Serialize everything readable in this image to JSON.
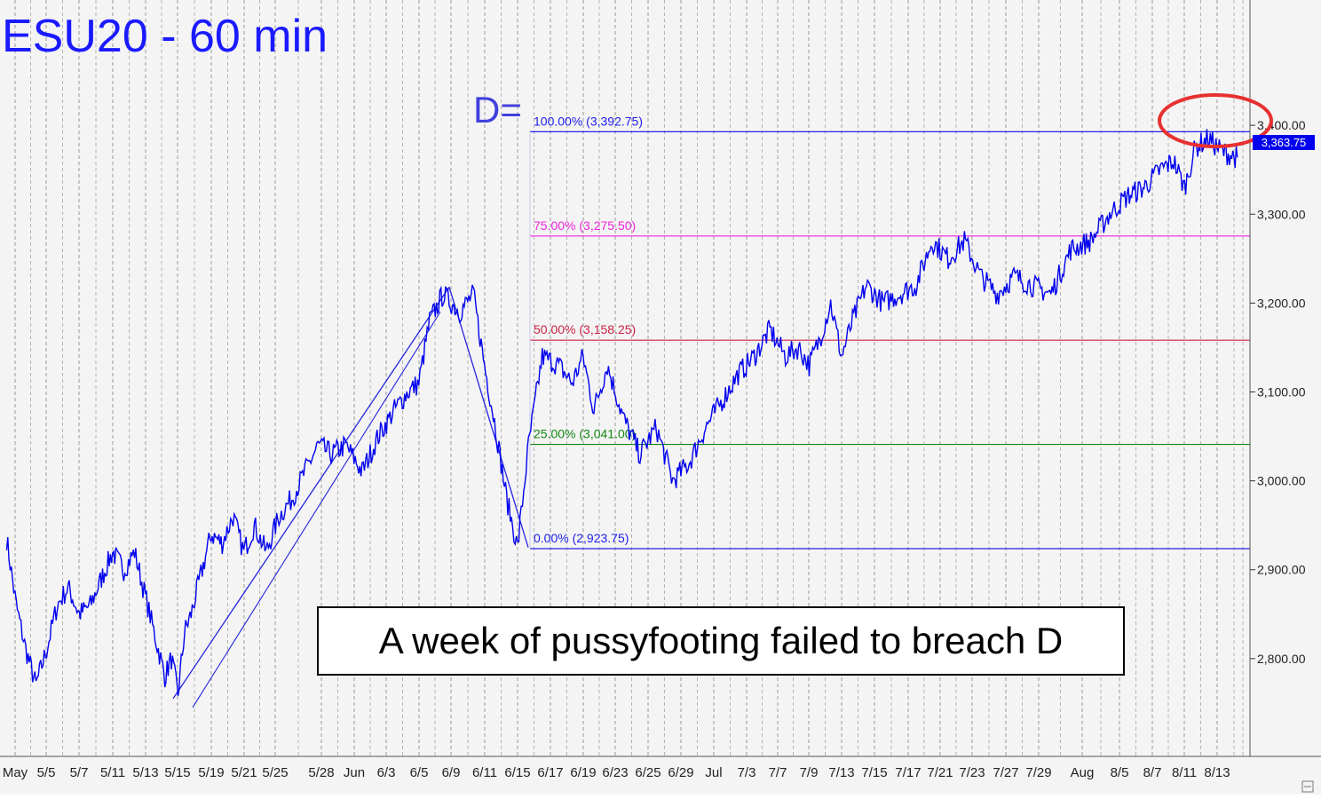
{
  "colors": {
    "background": "#f4f4f4",
    "price": "#0000ee",
    "level_100": "#2020ee",
    "level_75": "#ee22dd",
    "level_50": "#cc2244",
    "level_25": "#118811",
    "level_0": "#2020ee",
    "title": "#1a1aff",
    "highlight_ellipse": "#e83030",
    "current_price_bg": "#0000ee"
  },
  "chart_data": {
    "type": "line",
    "title": "ESU20 - 60 min",
    "timeframe": "60 min",
    "x_tick_labels": [
      "May",
      "5/5",
      "5/7",
      "5/11",
      "5/13",
      "5/15",
      "5/19",
      "5/21",
      "5/25",
      "5/28",
      "Jun",
      "6/3",
      "6/5",
      "6/9",
      "6/11",
      "6/15",
      "6/17",
      "6/19",
      "6/23",
      "6/25",
      "6/29",
      "Jul",
      "7/3",
      "7/7",
      "7/9",
      "7/13",
      "7/15",
      "7/17",
      "7/21",
      "7/23",
      "7/27",
      "7/29",
      "Aug",
      "8/5",
      "8/7",
      "8/11",
      "8/13"
    ],
    "y_tick_labels": [
      "2,800.00",
      "2,900.00",
      "3,000.00",
      "3,100.00",
      "3,200.00",
      "3,300.00",
      "3,400.00"
    ],
    "y_ticks": [
      2800,
      2900,
      3000,
      3100,
      3200,
      3300,
      3400
    ],
    "ylim": [
      2690,
      3515
    ],
    "grid": "vertical dashed",
    "current_price": 3363.75,
    "current_price_label": "3,363.75",
    "d_label": "D=",
    "levels": [
      {
        "key": "level_100",
        "label": "100.00% (3,392.75)",
        "value": 3392.75
      },
      {
        "key": "level_75",
        "label": "75.00% (3,275.50)",
        "value": 3275.5
      },
      {
        "key": "level_50",
        "label": "50.00% (3,158.25)",
        "value": 3158.25
      },
      {
        "key": "level_25",
        "label": "25.00% (3,041.00)",
        "value": 3041.0
      },
      {
        "key": "level_0",
        "label": "0.00% (2,923.75)",
        "value": 2923.75
      }
    ],
    "price_path": [
      [
        "May",
        2935
      ],
      [
        "May",
        2860
      ],
      [
        "May",
        2810
      ],
      [
        "5/5",
        2770
      ],
      [
        "5/5",
        2810
      ],
      [
        "5/5",
        2860
      ],
      [
        "5/7",
        2880
      ],
      [
        "5/7",
        2850
      ],
      [
        "5/7",
        2860
      ],
      [
        "5/11",
        2890
      ],
      [
        "5/11",
        2920
      ],
      [
        "5/11",
        2900
      ],
      [
        "5/13",
        2920
      ],
      [
        "5/13",
        2870
      ],
      [
        "5/13",
        2820
      ],
      [
        "5/15",
        2780
      ],
      [
        "5/15",
        2800
      ],
      [
        "5/15",
        2760
      ],
      [
        "5/15",
        2830
      ],
      [
        "5/15",
        2850
      ],
      [
        "5/19",
        2890
      ],
      [
        "5/19",
        2940
      ],
      [
        "5/19",
        2930
      ],
      [
        "5/21",
        2960
      ],
      [
        "5/21",
        2920
      ],
      [
        "5/21",
        2950
      ],
      [
        "5/25",
        2920
      ],
      [
        "5/25",
        2960
      ],
      [
        "5/25",
        2980
      ],
      [
        "5/28",
        3010
      ],
      [
        "5/28",
        3040
      ],
      [
        "5/28",
        3030
      ],
      [
        "Jun",
        3040
      ],
      [
        "Jun",
        3010
      ],
      [
        "6/3",
        3050
      ],
      [
        "6/3",
        3080
      ],
      [
        "6/5",
        3100
      ],
      [
        "6/5",
        3110
      ],
      [
        "6/5",
        3180
      ],
      [
        "6/9",
        3210
      ],
      [
        "6/9",
        3190
      ],
      [
        "6/11",
        3210
      ],
      [
        "6/11",
        3130
      ],
      [
        "6/11",
        3060
      ],
      [
        "6/15",
        2980
      ],
      [
        "6/15",
        2925
      ],
      [
        "6/15",
        3040
      ],
      [
        "6/17",
        3140
      ],
      [
        "6/17",
        3130
      ],
      [
        "6/19",
        3110
      ],
      [
        "6/19",
        3140
      ],
      [
        "6/19",
        3080
      ],
      [
        "6/23",
        3130
      ],
      [
        "6/23",
        3070
      ],
      [
        "6/25",
        3030
      ],
      [
        "6/25",
        3060
      ],
      [
        "6/29",
        3000
      ],
      [
        "6/29",
        3020
      ],
      [
        "Jul",
        3060
      ],
      [
        "Jul",
        3090
      ],
      [
        "7/3",
        3120
      ],
      [
        "7/3",
        3140
      ],
      [
        "7/7",
        3170
      ],
      [
        "7/7",
        3140
      ],
      [
        "7/9",
        3150
      ],
      [
        "7/9",
        3130
      ],
      [
        "7/9",
        3160
      ],
      [
        "7/13",
        3200
      ],
      [
        "7/13",
        3140
      ],
      [
        "7/13",
        3180
      ],
      [
        "7/15",
        3220
      ],
      [
        "7/15",
        3200
      ],
      [
        "7/17",
        3210
      ],
      [
        "7/17",
        3220
      ],
      [
        "7/21",
        3270
      ],
      [
        "7/21",
        3250
      ],
      [
        "7/23",
        3270
      ],
      [
        "7/23",
        3230
      ],
      [
        "7/27",
        3210
      ],
      [
        "7/27",
        3230
      ],
      [
        "7/29",
        3220
      ],
      [
        "7/29",
        3210
      ],
      [
        "Aug",
        3260
      ],
      [
        "Aug",
        3270
      ],
      [
        "8/5",
        3300
      ],
      [
        "8/5",
        3320
      ],
      [
        "8/7",
        3330
      ],
      [
        "8/7",
        3350
      ],
      [
        "8/11",
        3360
      ],
      [
        "8/11",
        3330
      ],
      [
        "8/11",
        3375
      ],
      [
        "8/13",
        3385
      ],
      [
        "8/13",
        3370
      ],
      [
        "8/13",
        3363.75
      ]
    ],
    "abcd_pattern": [
      [
        "5/15",
        2755
      ],
      [
        "6/9",
        3218
      ],
      [
        "6/15",
        2925
      ]
    ]
  },
  "annotation": {
    "text": "A week of pussyfooting failed to breach D"
  }
}
